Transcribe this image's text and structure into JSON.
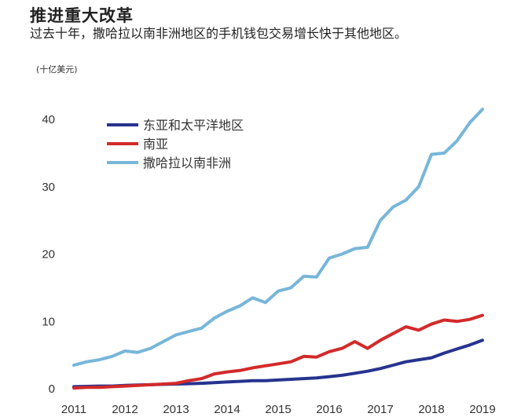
{
  "header": {
    "title": "推进重大改革",
    "subtitle": "过去十年，撒哈拉以南非洲地区的手机钱包交易增长快于其他地区。",
    "unit": "(十亿美元)"
  },
  "colors": {
    "east_asia_pacific": "#27338f",
    "south_asia": "#d32a2a",
    "sub_saharan_africa": "#77b6d9"
  },
  "chart_data": {
    "type": "line",
    "title": "推进重大改革",
    "subtitle": "过去十年，撒哈拉以南非洲地区的手机钱包交易增长快于其他地区。",
    "ylabel": "(十亿美元)",
    "xlabel": "",
    "ylim": [
      0,
      42
    ],
    "yticks": [
      0,
      10,
      20,
      30,
      40
    ],
    "xticks": [
      "2011",
      "2012",
      "2013",
      "2014",
      "2015",
      "2016",
      "2017",
      "2018",
      "2019"
    ],
    "xlim": [
      2011,
      2019
    ],
    "grid": false,
    "legend": "top-left",
    "x": [
      2011,
      2011.25,
      2011.5,
      2011.75,
      2012,
      2012.25,
      2012.5,
      2012.75,
      2013,
      2013.25,
      2013.5,
      2013.75,
      2014,
      2014.25,
      2014.5,
      2014.75,
      2015,
      2015.25,
      2015.5,
      2015.75,
      2016,
      2016.25,
      2016.5,
      2016.75,
      2017,
      2017.25,
      2017.5,
      2017.75,
      2018,
      2018.25,
      2018.5,
      2018.75,
      2019
    ],
    "series": [
      {
        "name": "东亚和太平洋地区",
        "color": "#27338f",
        "values": [
          0.3,
          0.35,
          0.4,
          0.4,
          0.5,
          0.55,
          0.6,
          0.65,
          0.7,
          0.75,
          0.8,
          0.9,
          1.0,
          1.1,
          1.2,
          1.2,
          1.3,
          1.4,
          1.5,
          1.6,
          1.8,
          2.0,
          2.3,
          2.6,
          3.0,
          3.5,
          4.0,
          4.3,
          4.6,
          5.3,
          5.9,
          6.5,
          7.2
        ]
      },
      {
        "name": "南亚",
        "color": "#d32a2a",
        "values": [
          0.1,
          0.2,
          0.2,
          0.3,
          0.4,
          0.5,
          0.6,
          0.7,
          0.8,
          1.2,
          1.5,
          2.2,
          2.5,
          2.7,
          3.1,
          3.4,
          3.7,
          4.0,
          4.8,
          4.7,
          5.5,
          6.0,
          7.0,
          6.0,
          7.2,
          8.2,
          9.2,
          8.7,
          9.6,
          10.2,
          10.0,
          10.3,
          10.9
        ]
      },
      {
        "name": "撒哈拉以南非洲",
        "color": "#77b6d9",
        "values": [
          3.5,
          4.0,
          4.3,
          4.8,
          5.6,
          5.4,
          6.0,
          7.0,
          8.0,
          8.5,
          9.0,
          10.5,
          11.5,
          12.3,
          13.5,
          12.8,
          14.5,
          15.0,
          16.7,
          16.6,
          19.4,
          20.0,
          20.8,
          21.0,
          25.0,
          27.0,
          28.0,
          30.0,
          34.8,
          35.0,
          36.8,
          39.5,
          41.5
        ]
      }
    ]
  }
}
